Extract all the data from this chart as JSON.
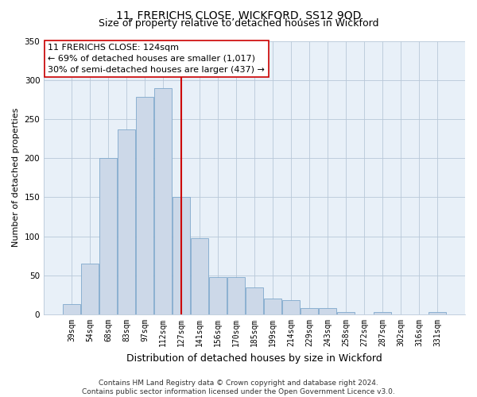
{
  "title": "11, FRERICHS CLOSE, WICKFORD, SS12 9QD",
  "subtitle": "Size of property relative to detached houses in Wickford",
  "xlabel": "Distribution of detached houses by size in Wickford",
  "ylabel": "Number of detached properties",
  "bar_labels": [
    "39sqm",
    "54sqm",
    "68sqm",
    "83sqm",
    "97sqm",
    "112sqm",
    "127sqm",
    "141sqm",
    "156sqm",
    "170sqm",
    "185sqm",
    "199sqm",
    "214sqm",
    "229sqm",
    "243sqm",
    "258sqm",
    "272sqm",
    "287sqm",
    "302sqm",
    "316sqm",
    "331sqm"
  ],
  "bar_values": [
    13,
    65,
    200,
    237,
    278,
    290,
    150,
    98,
    48,
    48,
    35,
    20,
    18,
    8,
    8,
    3,
    0,
    3,
    0,
    0,
    3
  ],
  "bar_color": "#ccd8e8",
  "bar_edge_color": "#7fa8cc",
  "vline_x_index": 6,
  "vline_color": "#cc0000",
  "ylim": [
    0,
    350
  ],
  "yticks": [
    0,
    50,
    100,
    150,
    200,
    250,
    300,
    350
  ],
  "annotation_title": "11 FRERICHS CLOSE: 124sqm",
  "annotation_line1": "← 69% of detached houses are smaller (1,017)",
  "annotation_line2": "30% of semi-detached houses are larger (437) →",
  "annotation_box_color": "#ffffff",
  "annotation_box_edge": "#cc0000",
  "footer1": "Contains HM Land Registry data © Crown copyright and database right 2024.",
  "footer2": "Contains public sector information licensed under the Open Government Licence v3.0.",
  "title_fontsize": 10,
  "subtitle_fontsize": 9,
  "ylabel_fontsize": 8,
  "xlabel_fontsize": 9,
  "tick_fontsize": 7,
  "annotation_fontsize": 8,
  "footer_fontsize": 6.5,
  "plot_bg_color": "#e8f0f8"
}
